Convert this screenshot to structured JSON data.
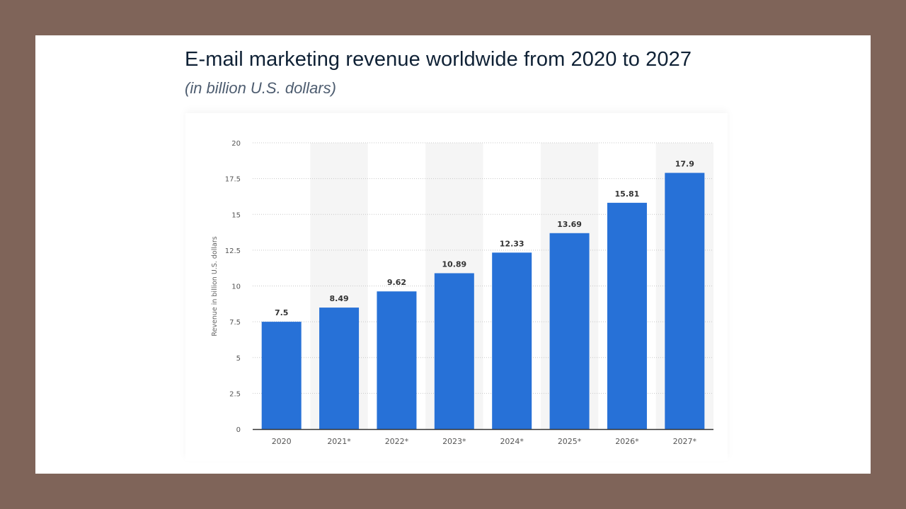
{
  "chart_data": {
    "type": "bar",
    "title": "E-mail marketing revenue worldwide from 2020 to 2027",
    "subtitle": "(in billion U.S. dollars)",
    "xlabel": "",
    "ylabel": "Revenue in billion U.S. dollars",
    "categories": [
      "2020",
      "2021*",
      "2022*",
      "2023*",
      "2024*",
      "2025*",
      "2026*",
      "2027*"
    ],
    "values": [
      7.5,
      8.49,
      9.62,
      10.89,
      12.33,
      13.69,
      15.81,
      17.9
    ],
    "data_labels": [
      "7.5",
      "8.49",
      "9.62",
      "10.89",
      "12.33",
      "13.69",
      "15.81",
      "17.9"
    ],
    "ylim": [
      0,
      20
    ],
    "yticks": [
      0,
      2.5,
      5,
      7.5,
      10,
      12.5,
      15,
      17.5,
      20
    ],
    "ytick_labels": [
      "0",
      "2.5",
      "5",
      "7.5",
      "10",
      "12.5",
      "15",
      "17.5",
      "20"
    ],
    "grid": true,
    "legend": "none",
    "colors": {
      "bar": "#2771d7",
      "band": "#f5f5f5",
      "grid": "#c8c8c8",
      "axis": "#333333"
    }
  }
}
